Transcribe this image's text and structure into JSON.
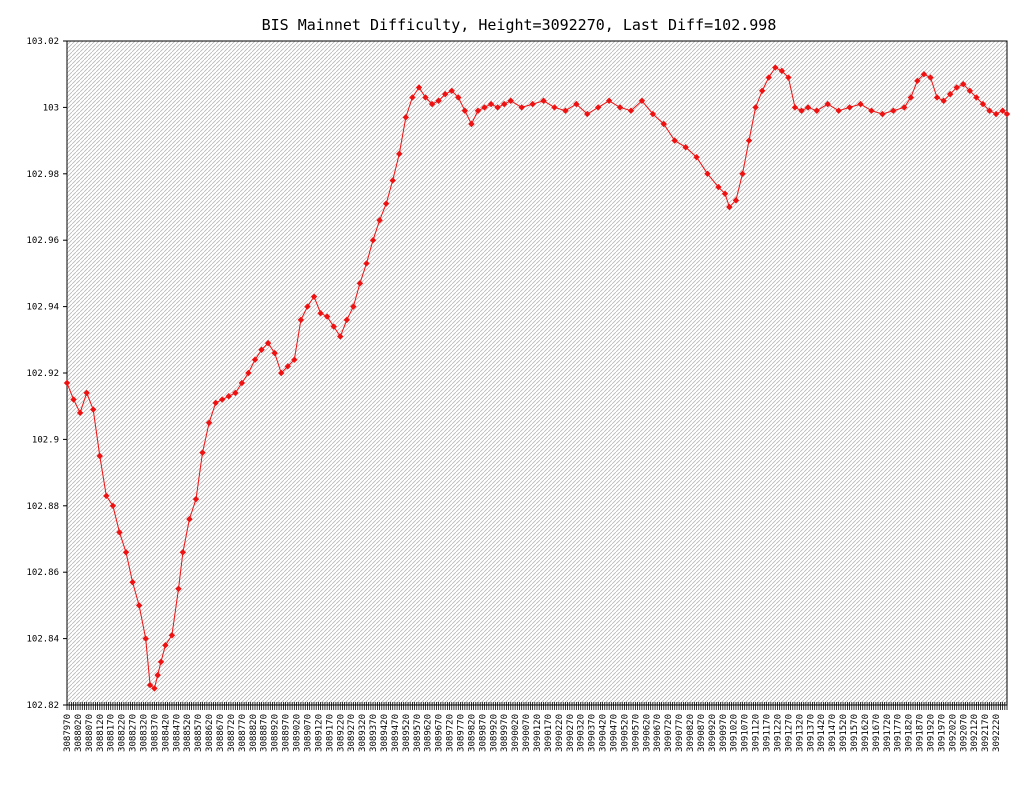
{
  "chart_data": {
    "type": "line",
    "title": "BIS Mainnet Difficulty, Height=3092270, Last Diff=102.998",
    "xlabel": "",
    "ylabel": "",
    "ylim": [
      102.82,
      103.02
    ],
    "xlim": [
      3087970,
      3092270
    ],
    "y_ticks": [
      "103.02",
      "103",
      "102.98",
      "102.96",
      "102.94",
      "102.92",
      "102.9",
      "102.88",
      "102.86",
      "102.84",
      "102.82"
    ],
    "x_tick_labels": [
      "3087970",
      "3088020",
      "3088070",
      "3088120",
      "3088170",
      "3088220",
      "3088270",
      "3088320",
      "3088370",
      "3088420",
      "3088470",
      "3088520",
      "3088570",
      "3088620",
      "3088670",
      "3088720",
      "3088770",
      "3088820",
      "3088870",
      "3088920",
      "3088970",
      "3089020",
      "3089070",
      "3089120",
      "3089170",
      "3089220",
      "3089270",
      "3089320",
      "3089370",
      "3089420",
      "3089470",
      "3089520",
      "3089570",
      "3089620",
      "3089670",
      "3089720",
      "3089770",
      "3089820",
      "3089870",
      "3089920",
      "3089970",
      "3090020",
      "3090070",
      "3090120",
      "3090170",
      "3090220",
      "3090270",
      "3090320",
      "3090370",
      "3090420",
      "3090470",
      "3090520",
      "3090570",
      "3090620",
      "3090670",
      "3090720",
      "3090770",
      "3090820",
      "3090870",
      "3090920",
      "3090970",
      "3091020",
      "3091070",
      "3091120",
      "3091170",
      "3091220",
      "3091270",
      "3091320",
      "3091370",
      "3091420",
      "3091470",
      "3091520",
      "3091570",
      "3091620",
      "3091670",
      "3091720",
      "3091770",
      "3091820",
      "3091870",
      "3091920",
      "3091970",
      "3092020",
      "3092070",
      "3092120",
      "3092170",
      "3092220"
    ],
    "grid": "diagonal-hatch background",
    "colors": {
      "series": "#ee1111",
      "grid": "#bbbbbb"
    },
    "series": [
      {
        "x": [
          3087970,
          3088000,
          3088030,
          3088060,
          3088090,
          3088120,
          3088150,
          3088180,
          3088210,
          3088240,
          3088270,
          3088300,
          3088330,
          3088350,
          3088370,
          3088385,
          3088400,
          3088420,
          3088450,
          3088480,
          3088500,
          3088530,
          3088560,
          3088590,
          3088620,
          3088650,
          3088680,
          3088710,
          3088740,
          3088770,
          3088800,
          3088830,
          3088860,
          3088890,
          3088920,
          3088950,
          3088980,
          3089010,
          3089040,
          3089070,
          3089100,
          3089130,
          3089160,
          3089190,
          3089220,
          3089250,
          3089280,
          3089310,
          3089340,
          3089370,
          3089400,
          3089430,
          3089460,
          3089490,
          3089520,
          3089550,
          3089580,
          3089610,
          3089640,
          3089670,
          3089700,
          3089730,
          3089760,
          3089790,
          3089820,
          3089850,
          3089880,
          3089910,
          3089940,
          3089970,
          3090000,
          3090050,
          3090100,
          3090150,
          3090200,
          3090250,
          3090300,
          3090350,
          3090400,
          3090450,
          3090500,
          3090550,
          3090600,
          3090650,
          3090700,
          3090750,
          3090800,
          3090850,
          3090900,
          3090950,
          3090980,
          3091000,
          3091030,
          3091060,
          3091090,
          3091120,
          3091150,
          3091180,
          3091210,
          3091240,
          3091270,
          3091300,
          3091330,
          3091360,
          3091400,
          3091450,
          3091500,
          3091550,
          3091600,
          3091650,
          3091700,
          3091750,
          3091800,
          3091830,
          3091860,
          3091890,
          3091920,
          3091950,
          3091980,
          3092010,
          3092040,
          3092070,
          3092100,
          3092130,
          3092160,
          3092190,
          3092220,
          3092250,
          3092270
        ],
        "values": [
          102.917,
          102.912,
          102.908,
          102.914,
          102.909,
          102.895,
          102.883,
          102.88,
          102.872,
          102.866,
          102.857,
          102.85,
          102.84,
          102.826,
          102.825,
          102.829,
          102.833,
          102.838,
          102.841,
          102.855,
          102.866,
          102.876,
          102.882,
          102.896,
          102.905,
          102.911,
          102.912,
          102.913,
          102.914,
          102.917,
          102.92,
          102.924,
          102.927,
          102.929,
          102.926,
          102.92,
          102.922,
          102.924,
          102.936,
          102.94,
          102.943,
          102.938,
          102.937,
          102.934,
          102.931,
          102.936,
          102.94,
          102.947,
          102.953,
          102.96,
          102.966,
          102.971,
          102.978,
          102.986,
          102.997,
          103.003,
          103.006,
          103.003,
          103.001,
          103.002,
          103.004,
          103.005,
          103.003,
          102.999,
          102.995,
          102.999,
          103.0,
          103.001,
          103.0,
          103.001,
          103.002,
          103.0,
          103.001,
          103.002,
          103.0,
          102.999,
          103.001,
          102.998,
          103.0,
          103.002,
          103.0,
          102.999,
          103.002,
          102.998,
          102.995,
          102.99,
          102.988,
          102.985,
          102.98,
          102.976,
          102.974,
          102.97,
          102.972,
          102.98,
          102.99,
          103.0,
          103.005,
          103.009,
          103.012,
          103.011,
          103.009,
          103.0,
          102.999,
          103.0,
          102.999,
          103.001,
          102.999,
          103.0,
          103.001,
          102.999,
          102.998,
          102.999,
          103.0,
          103.003,
          103.008,
          103.01,
          103.009,
          103.003,
          103.002,
          103.004,
          103.006,
          103.007,
          103.005,
          103.003,
          103.001,
          102.999,
          102.998,
          102.999,
          102.998
        ]
      }
    ]
  }
}
